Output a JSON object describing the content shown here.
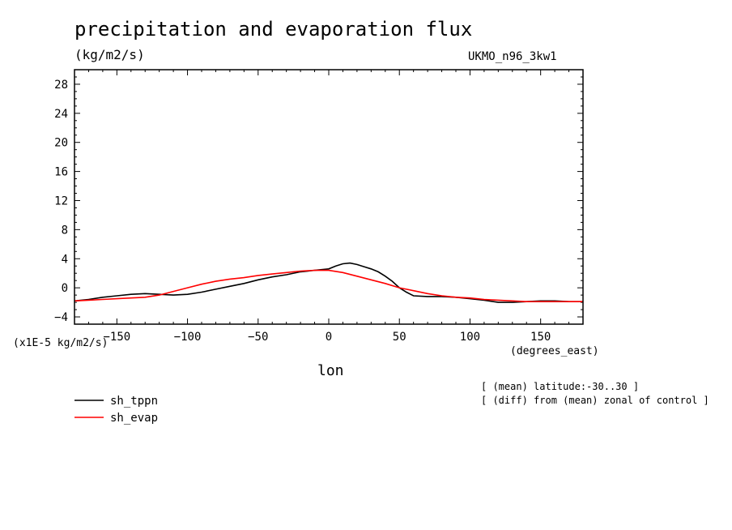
{
  "title": "precipitation and evaporation flux",
  "units_label": "(kg/m2/s)",
  "model_label": "UKMO_n96_3kw1",
  "scale_label": "(x1E-5 kg/m2/s)",
  "x_units_label": "(degrees_east)",
  "notes": [
    "[ (mean) latitude:-30..30 ]",
    "[ (diff) from (mean) zonal of control ]"
  ],
  "chart_data": {
    "type": "line",
    "title": "precipitation and evaporation flux",
    "xlabel": "lon",
    "ylabel": "(kg/m2/s)",
    "xlim": [
      -180,
      180
    ],
    "ylim": [
      -5,
      30
    ],
    "xticks": [
      -150,
      -100,
      -50,
      0,
      50,
      100,
      150
    ],
    "yticks": [
      -4,
      0,
      4,
      8,
      12,
      16,
      20,
      24,
      28
    ],
    "grid": false,
    "legend_position": "below-left",
    "series": [
      {
        "name": "sh_tppn",
        "color": "#000000",
        "x": [
          -180,
          -170,
          -160,
          -150,
          -140,
          -130,
          -120,
          -110,
          -100,
          -90,
          -80,
          -70,
          -60,
          -50,
          -40,
          -30,
          -20,
          -10,
          0,
          5,
          10,
          15,
          20,
          25,
          30,
          35,
          40,
          45,
          50,
          55,
          60,
          70,
          80,
          90,
          100,
          110,
          120,
          130,
          140,
          150,
          160,
          170,
          180
        ],
        "y": [
          -1.8,
          -1.6,
          -1.3,
          -1.1,
          -0.9,
          -0.8,
          -0.9,
          -1.0,
          -0.9,
          -0.6,
          -0.2,
          0.2,
          0.6,
          1.1,
          1.5,
          1.8,
          2.2,
          2.4,
          2.6,
          3.0,
          3.3,
          3.4,
          3.2,
          2.9,
          2.6,
          2.2,
          1.6,
          0.9,
          0.0,
          -0.6,
          -1.1,
          -1.2,
          -1.2,
          -1.3,
          -1.5,
          -1.7,
          -2.0,
          -2.0,
          -1.9,
          -1.8,
          -1.8,
          -1.9,
          -1.9
        ]
      },
      {
        "name": "sh_evap",
        "color": "#ff0000",
        "x": [
          -180,
          -170,
          -160,
          -150,
          -140,
          -130,
          -120,
          -110,
          -100,
          -90,
          -80,
          -70,
          -60,
          -50,
          -40,
          -30,
          -20,
          -10,
          0,
          10,
          20,
          30,
          40,
          50,
          60,
          70,
          80,
          90,
          100,
          110,
          120,
          130,
          140,
          150,
          160,
          170,
          180
        ],
        "y": [
          -1.8,
          -1.7,
          -1.6,
          -1.5,
          -1.4,
          -1.3,
          -1.0,
          -0.5,
          0.0,
          0.5,
          0.9,
          1.2,
          1.4,
          1.7,
          1.9,
          2.1,
          2.3,
          2.4,
          2.4,
          2.1,
          1.6,
          1.1,
          0.6,
          0.0,
          -0.4,
          -0.8,
          -1.1,
          -1.3,
          -1.4,
          -1.6,
          -1.7,
          -1.8,
          -1.9,
          -1.9,
          -1.9,
          -1.9,
          -1.9
        ]
      }
    ]
  }
}
